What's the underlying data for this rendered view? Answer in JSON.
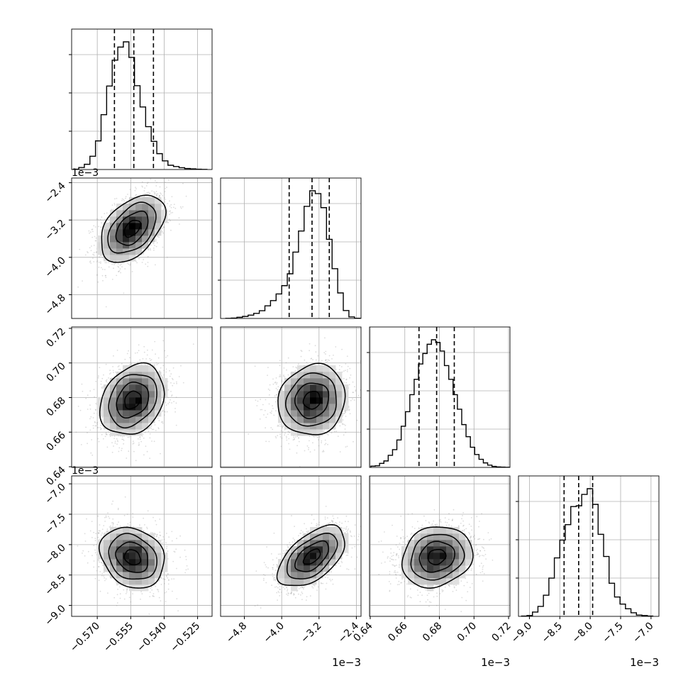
{
  "chart_data": {
    "type": "corner",
    "colors": {
      "line": "#000000",
      "grid": "#b0b0b0",
      "scatter": "#9a9a9a"
    },
    "grid": true,
    "parameters": [
      {
        "index": 0,
        "range": [
          -0.5815,
          -0.5185
        ],
        "ticks": [
          -0.57,
          -0.555,
          -0.54,
          -0.525
        ],
        "tick_labels": [
          "−0.570",
          "−0.555",
          "−0.540",
          "−0.525"
        ],
        "offset_label": ""
      },
      {
        "index": 1,
        "range": [
          -5.31,
          -2.3
        ],
        "ticks": [
          -4.8,
          -4.0,
          -3.2,
          -2.4
        ],
        "tick_labels": [
          "−4.8",
          "−4.0",
          "−3.2",
          "−2.4"
        ],
        "offset_label": "1e−3"
      },
      {
        "index": 2,
        "range": [
          0.6396,
          0.7208
        ],
        "ticks": [
          0.64,
          0.66,
          0.68,
          0.7,
          0.72
        ],
        "tick_labels": [
          "0.64",
          "0.66",
          "0.68",
          "0.70",
          "0.72"
        ],
        "offset_label": "1e−3"
      },
      {
        "index": 3,
        "range": [
          -9.18,
          -6.87
        ],
        "ticks": [
          -9.0,
          -8.5,
          -8.0,
          -7.5,
          -7.0
        ],
        "tick_labels": [
          "−9.0",
          "−8.5",
          "−8.0",
          "−7.5",
          "−7.0"
        ],
        "offset_label": "1e−3"
      }
    ],
    "histograms": [
      {
        "param": 0,
        "quantiles": [
          -0.5623,
          -0.5536,
          -0.5448
        ],
        "edges": [
          -0.5808,
          -0.5783,
          -0.5758,
          -0.5733,
          -0.5708,
          -0.5683,
          -0.5658,
          -0.5633,
          -0.5608,
          -0.5583,
          -0.5558,
          -0.5533,
          -0.5508,
          -0.5483,
          -0.5458,
          -0.5433,
          -0.5408,
          -0.5383,
          -0.5358,
          -0.5333,
          -0.5308,
          -0.5283,
          -0.5258,
          -0.5233,
          -0.5208
        ],
        "counts": [
          2,
          12,
          32,
          81,
          175,
          335,
          510,
          668,
          748,
          780,
          685,
          512,
          382,
          262,
          172,
          97,
          53,
          26,
          18,
          11,
          6,
          4,
          2,
          1
        ]
      },
      {
        "param": 1,
        "quantiles": [
          -3.84,
          -3.35,
          -2.98
        ],
        "edges": [
          -5.2,
          -5.08,
          -4.96,
          -4.84,
          -4.72,
          -4.6,
          -4.48,
          -4.36,
          -4.24,
          -4.12,
          -4.0,
          -3.88,
          -3.76,
          -3.64,
          -3.52,
          -3.4,
          -3.28,
          -3.16,
          -3.04,
          -2.92,
          -2.8,
          -2.68,
          -2.56,
          -2.44,
          -2.32
        ],
        "counts": [
          1,
          3,
          9,
          16,
          26,
          40,
          61,
          99,
          140,
          192,
          257,
          350,
          520,
          685,
          878,
          1000,
          978,
          868,
          620,
          390,
          200,
          62,
          12,
          2
        ]
      },
      {
        "param": 2,
        "quantiles": [
          0.6682,
          0.6784,
          0.6886
        ],
        "edges": [
          0.6404,
          0.6429,
          0.6454,
          0.6479,
          0.6504,
          0.6529,
          0.6554,
          0.6579,
          0.6604,
          0.6629,
          0.6654,
          0.6679,
          0.6704,
          0.6729,
          0.6754,
          0.6779,
          0.6804,
          0.6829,
          0.6854,
          0.6879,
          0.6904,
          0.6929,
          0.6954,
          0.6979,
          0.7004,
          0.7029,
          0.7054,
          0.7079,
          0.7104,
          0.7129,
          0.7154,
          0.7179,
          0.7204
        ],
        "counts": [
          8,
          10,
          25,
          40,
          75,
          110,
          170,
          255,
          345,
          450,
          545,
          640,
          705,
          762,
          790,
          773,
          720,
          630,
          545,
          450,
          360,
          265,
          190,
          125,
          80,
          50,
          28,
          14,
          6,
          3,
          2,
          1
        ]
      },
      {
        "param": 3,
        "quantiles": [
          -8.43,
          -8.19,
          -7.96
        ],
        "edges": [
          -9.13,
          -9.04,
          -8.95,
          -8.86,
          -8.77,
          -8.68,
          -8.59,
          -8.5,
          -8.41,
          -8.32,
          -8.23,
          -8.14,
          -8.05,
          -7.96,
          -7.87,
          -7.78,
          -7.69,
          -7.6,
          -7.51,
          -7.42,
          -7.33,
          -7.24,
          -7.15,
          -7.06,
          -6.97
        ],
        "counts": [
          2,
          6,
          30,
          70,
          148,
          268,
          410,
          535,
          643,
          770,
          775,
          855,
          895,
          785,
          575,
          420,
          232,
          136,
          86,
          53,
          25,
          9,
          6,
          2
        ]
      }
    ],
    "pairs": [
      {
        "x_param": 0,
        "y_param": 1,
        "center": [
          -0.5543,
          -3.38
        ],
        "sigma": [
          0.0072,
          0.36
        ],
        "rho": 0.45,
        "contour_levels_sigma": [
          0.5,
          1.0,
          1.5,
          2.0
        ]
      },
      {
        "x_param": 0,
        "y_param": 2,
        "center": [
          -0.5542,
          0.6786
        ],
        "sigma": [
          0.0072,
          0.0102
        ],
        "rho": 0.25,
        "contour_levels_sigma": [
          0.5,
          1.0,
          1.5,
          2.0
        ]
      },
      {
        "x_param": 1,
        "y_param": 2,
        "center": [
          -3.35,
          0.6785
        ],
        "sigma": [
          0.36,
          0.0102
        ],
        "rho": 0.1,
        "contour_levels_sigma": [
          0.5,
          1.0,
          1.5,
          2.0
        ]
      },
      {
        "x_param": 0,
        "y_param": 3,
        "center": [
          -0.5542,
          -8.21
        ],
        "sigma": [
          0.0072,
          0.25
        ],
        "rho": -0.2,
        "contour_levels_sigma": [
          0.5,
          1.0,
          1.5,
          2.0
        ]
      },
      {
        "x_param": 1,
        "y_param": 3,
        "center": [
          -3.35,
          -8.2
        ],
        "sigma": [
          0.36,
          0.25
        ],
        "rho": 0.55,
        "contour_levels_sigma": [
          0.5,
          1.0,
          1.5,
          2.0
        ]
      },
      {
        "x_param": 2,
        "y_param": 3,
        "center": [
          0.6785,
          -8.2
        ],
        "sigma": [
          0.0102,
          0.25
        ],
        "rho": 0.15,
        "contour_levels_sigma": [
          0.5,
          1.0,
          1.5,
          2.0
        ]
      }
    ]
  }
}
